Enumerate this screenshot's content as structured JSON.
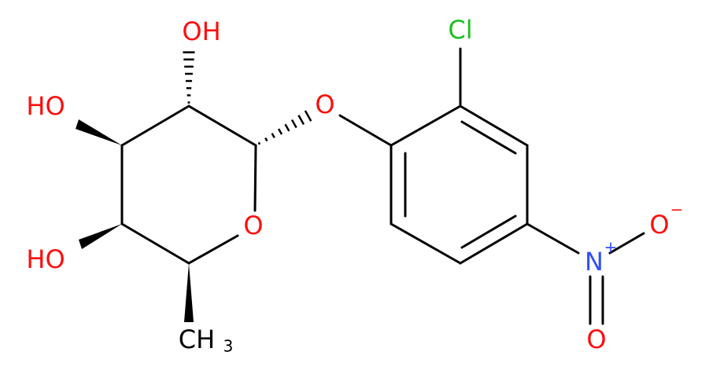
{
  "atoms": [
    {
      "label": "OH"
    },
    {
      "label": "HO"
    },
    {
      "label": "HO"
    },
    {
      "label": "O"
    },
    {
      "label": "O"
    },
    {
      "label": "Cl"
    },
    {
      "label": "N",
      "charge": "+"
    },
    {
      "label": "O",
      "charge": "−"
    },
    {
      "label": "O"
    },
    {
      "label": "CH",
      "subscript": "3"
    }
  ]
}
